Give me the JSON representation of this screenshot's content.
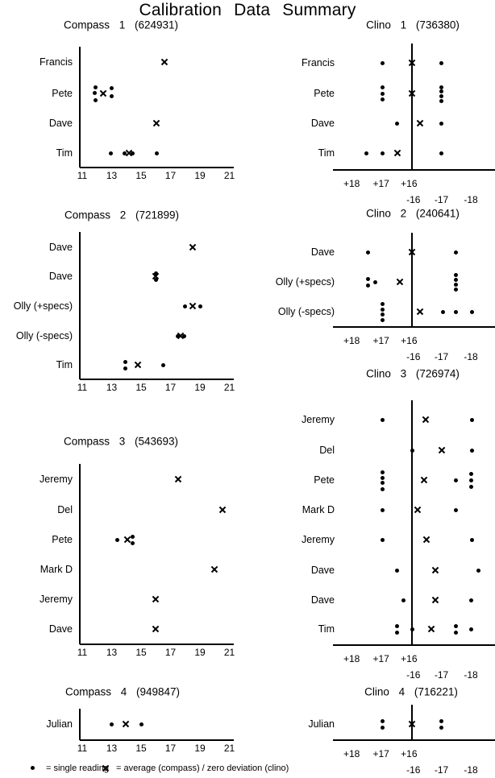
{
  "title": "Calibration Data Summary",
  "legend": {
    "dot_label": "= single reading",
    "x_label": "= average (compass) / zero deviation (clino)"
  },
  "colors": {
    "ink": "#000000",
    "background": "#ffffff"
  },
  "chart_data": [
    {
      "type": "scatter",
      "kind": "compass",
      "id": "compass-1",
      "title": "Compass 1 (624931)",
      "xlim": [
        11,
        21
      ],
      "axis": {
        "ticks": [
          "11",
          "13",
          "15",
          "17",
          "19",
          "21"
        ]
      },
      "rows": [
        {
          "label": "Francis",
          "dots": [],
          "avg": [
            [
              16.6,
              0
            ]
          ]
        },
        {
          "label": "Pete",
          "dots": [
            [
              11.9,
              -8
            ],
            [
              11.85,
              -1
            ],
            [
              11.9,
              8
            ],
            [
              13.0,
              -7
            ],
            [
              13.0,
              3
            ]
          ],
          "avg": [
            [
              12.4,
              0
            ]
          ]
        },
        {
          "label": "Dave",
          "dots": [],
          "avg": [
            [
              16.05,
              0
            ]
          ]
        },
        {
          "label": "Tim",
          "dots": [
            [
              12.95,
              0
            ],
            [
              13.9,
              0
            ],
            [
              14.45,
              0
            ],
            [
              16.05,
              0
            ]
          ],
          "avg": [
            [
              14.2,
              0
            ]
          ]
        }
      ]
    },
    {
      "type": "scatter",
      "kind": "clino",
      "id": "clino-1",
      "title": "Clino 1 (736380)",
      "axis": {
        "plus": [
          "+18",
          "+17",
          "+16"
        ],
        "minus": [
          "-16",
          "-17",
          "-18"
        ]
      },
      "rows": [
        {
          "label": "Francis",
          "dots": [
            [
              -1,
              0
            ],
            [
              1,
              0
            ]
          ],
          "avg": [
            [
              0,
              0
            ]
          ]
        },
        {
          "label": "Pete",
          "dots": [
            [
              -1,
              -8
            ],
            [
              -1,
              0
            ],
            [
              -1,
              7
            ],
            [
              1,
              -8
            ],
            [
              1,
              -3
            ],
            [
              1,
              3
            ],
            [
              1,
              9
            ]
          ],
          "avg": [
            [
              0,
              0
            ]
          ]
        },
        {
          "label": "Dave",
          "dots": [
            [
              -0.5,
              0
            ],
            [
              1,
              0
            ]
          ],
          "avg": [
            [
              0.27,
              0
            ]
          ]
        },
        {
          "label": "Tim",
          "dots": [
            [
              -1.55,
              0
            ],
            [
              -1,
              0
            ],
            [
              1,
              0
            ]
          ],
          "avg": [
            [
              -0.5,
              0
            ]
          ]
        }
      ]
    },
    {
      "type": "scatter",
      "kind": "compass",
      "id": "compass-2",
      "title": "Compass 2 (721899)",
      "xlim": [
        11,
        21
      ],
      "axis": {
        "ticks": [
          "11",
          "13",
          "15",
          "17",
          "19",
          "21"
        ]
      },
      "rows": [
        {
          "label": "Dave",
          "dots": [],
          "avg": [
            [
              18.5,
              0
            ]
          ]
        },
        {
          "label": "Dave",
          "dots": [
            [
              16,
              -4
            ],
            [
              16,
              4
            ]
          ],
          "avg": [
            [
              16,
              0
            ]
          ]
        },
        {
          "label": "Olly (+specs)",
          "dots": [
            [
              18.0,
              0
            ],
            [
              19.05,
              0
            ]
          ],
          "avg": [
            [
              18.5,
              0
            ]
          ]
        },
        {
          "label": "Olly (-specs)",
          "dots": [
            [
              17.5,
              0
            ],
            [
              17.95,
              0
            ]
          ],
          "avg": [
            [
              17.7,
              0
            ]
          ]
        },
        {
          "label": "Tim",
          "dots": [
            [
              13.95,
              -4
            ],
            [
              13.95,
              4
            ],
            [
              16.5,
              0
            ]
          ],
          "avg": [
            [
              14.8,
              0
            ]
          ]
        }
      ]
    },
    {
      "type": "scatter",
      "kind": "clino",
      "id": "clino-2",
      "title": "Clino 2 (240641)",
      "axis": {
        "plus": [
          "+18",
          "+17",
          "+16"
        ],
        "minus": [
          "-16",
          "-17",
          "-18"
        ]
      },
      "rows": [
        {
          "label": "Dave",
          "dots": [
            [
              -1.5,
              0
            ],
            [
              1.5,
              0
            ]
          ],
          "avg": [
            [
              0,
              0
            ]
          ]
        },
        {
          "label": "Olly (+specs)",
          "dots": [
            [
              -1.5,
              -4
            ],
            [
              -1.5,
              4
            ],
            [
              -1.25,
              0
            ],
            [
              1.5,
              -9
            ],
            [
              1.5,
              -3
            ],
            [
              1.5,
              3
            ],
            [
              1.5,
              9
            ]
          ],
          "avg": [
            [
              -0.4,
              0
            ]
          ]
        },
        {
          "label": "Olly (-specs)",
          "dots": [
            [
              -1,
              -10
            ],
            [
              -1,
              -3
            ],
            [
              -1,
              3
            ],
            [
              -1,
              10
            ],
            [
              1.05,
              0
            ],
            [
              1.5,
              0
            ],
            [
              2.05,
              0
            ]
          ],
          "avg": [
            [
              0.27,
              0
            ]
          ]
        }
      ]
    },
    {
      "type": "scatter",
      "kind": "compass",
      "id": "compass-3",
      "title": "Compass 3 (543693)",
      "xlim": [
        11,
        21
      ],
      "axis": {
        "ticks": [
          "11",
          "13",
          "15",
          "17",
          "19",
          "21"
        ]
      },
      "rows": [
        {
          "label": "Jeremy",
          "dots": [],
          "avg": [
            [
              17.5,
              0
            ]
          ]
        },
        {
          "label": "Del",
          "dots": [],
          "avg": [
            [
              20.55,
              0
            ]
          ]
        },
        {
          "label": "Pete",
          "dots": [
            [
              13.4,
              0
            ],
            [
              14.45,
              -4
            ],
            [
              14.45,
              4
            ]
          ],
          "avg": [
            [
              14.05,
              0
            ]
          ]
        },
        {
          "label": "Mark D",
          "dots": [],
          "avg": [
            [
              20.0,
              0
            ]
          ]
        },
        {
          "label": "Jeremy",
          "dots": [],
          "avg": [
            [
              16.0,
              0
            ]
          ]
        },
        {
          "label": "Dave",
          "dots": [],
          "avg": [
            [
              16.0,
              0
            ]
          ]
        }
      ]
    },
    {
      "type": "scatter",
      "kind": "clino",
      "id": "clino-3",
      "title": "Clino 3 (726974)",
      "axis": {
        "plus": [
          "+18",
          "+17",
          "+16"
        ],
        "minus": [
          "-16",
          "-17",
          "-18"
        ]
      },
      "rows": [
        {
          "label": "Jeremy",
          "dots": [
            [
              -1,
              0
            ],
            [
              2.05,
              0
            ]
          ],
          "avg": [
            [
              0.47,
              0
            ]
          ]
        },
        {
          "label": "Del",
          "dots": [
            [
              0,
              0
            ],
            [
              2.05,
              0
            ]
          ],
          "avg": [
            [
              1.0,
              0
            ]
          ]
        },
        {
          "label": "Pete",
          "dots": [
            [
              -1,
              -10
            ],
            [
              -1,
              -3
            ],
            [
              -1,
              3
            ],
            [
              -1,
              11
            ],
            [
              1.5,
              0
            ],
            [
              2,
              -8
            ],
            [
              2,
              0
            ],
            [
              2,
              8
            ]
          ],
          "avg": [
            [
              0.4,
              0
            ]
          ]
        },
        {
          "label": "Mark D",
          "dots": [
            [
              -1,
              0
            ],
            [
              1.5,
              0
            ]
          ],
          "avg": [
            [
              0.2,
              0
            ]
          ]
        },
        {
          "label": "Jeremy",
          "dots": [
            [
              -1,
              0
            ],
            [
              2.05,
              0
            ]
          ],
          "avg": [
            [
              0.5,
              0
            ]
          ]
        },
        {
          "label": "Dave",
          "dots": [
            [
              -0.5,
              0
            ],
            [
              2.25,
              0
            ]
          ],
          "avg": [
            [
              0.8,
              0
            ]
          ]
        },
        {
          "label": "Dave",
          "dots": [
            [
              -0.3,
              0
            ],
            [
              2.0,
              0
            ]
          ],
          "avg": [
            [
              0.8,
              0
            ]
          ]
        },
        {
          "label": "Tim",
          "dots": [
            [
              -0.5,
              -4
            ],
            [
              -0.5,
              4
            ],
            [
              0,
              0
            ],
            [
              1.5,
              -4
            ],
            [
              1.5,
              4
            ],
            [
              2.0,
              0
            ]
          ],
          "avg": [
            [
              0.65,
              0
            ]
          ]
        }
      ]
    },
    {
      "type": "scatter",
      "kind": "compass",
      "id": "compass-4",
      "title": "Compass 4 (949847)",
      "xlim": [
        11,
        21
      ],
      "axis": {
        "ticks": [
          "11",
          "13",
          "15",
          "17",
          "19",
          "21"
        ]
      },
      "rows": [
        {
          "label": "Julian",
          "dots": [
            [
              13.0,
              0
            ],
            [
              15.0,
              0
            ]
          ],
          "avg": [
            [
              13.95,
              0
            ]
          ]
        }
      ]
    },
    {
      "type": "scatter",
      "kind": "clino",
      "id": "clino-4",
      "title": "Clino 4 (716221)",
      "axis": {
        "plus": [
          "+18",
          "+17",
          "+16"
        ],
        "minus": [
          "-16",
          "-17",
          "-18"
        ]
      },
      "rows": [
        {
          "label": "Julian",
          "dots": [
            [
              -1,
              -4
            ],
            [
              -1,
              4
            ],
            [
              1,
              -4
            ],
            [
              1,
              4
            ]
          ],
          "avg": [
            [
              0,
              0
            ]
          ]
        }
      ]
    }
  ]
}
